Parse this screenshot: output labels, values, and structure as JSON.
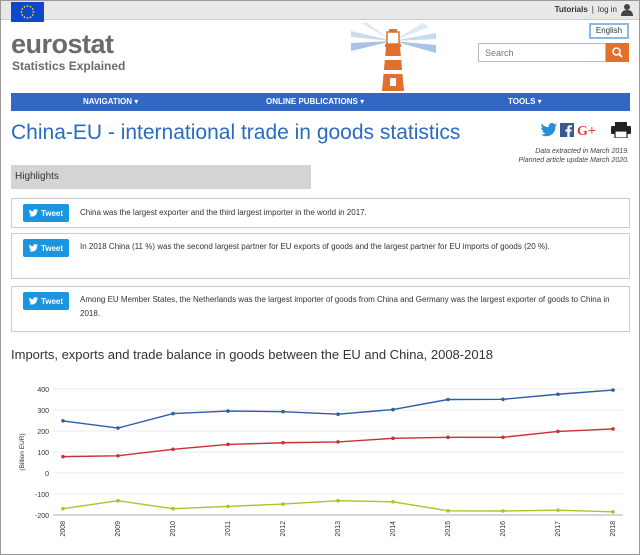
{
  "topbar": {
    "tutorials": "Tutorials",
    "separator": "|",
    "login": "log in"
  },
  "logo": {
    "main": "eurostat",
    "sub": "Statistics Explained"
  },
  "language": "English",
  "search": {
    "placeholder": "Search"
  },
  "nav": {
    "items": [
      "NAVIGATION ▾",
      "ONLINE PUBLICATIONS ▾",
      "TOOLS ▾"
    ]
  },
  "title": "China-EU - international trade in goods statistics",
  "extract": {
    "line1": "Data extracted in March 2019.",
    "line2": "Planned article update March 2020."
  },
  "highlights": {
    "heading": "Highlights",
    "tweet_label": "Tweet",
    "items": [
      "China was the largest exporter and the third largest importer in the world in 2017.",
      "In 2018 China (11 %) was the second largest partner for EU exports of goods and the largest partner for EU imports of goods (20 %).",
      "Among EU Member States, the Netherlands was the largest importer of goods from China and Germany was the largest exporter of goods to China in 2018."
    ]
  },
  "colors": {
    "accent": "#2a6bc2",
    "nav": "#3367c5",
    "search_button": "#e0702a",
    "tweet": "#1b95e0"
  },
  "chart_data": {
    "type": "line",
    "title": "Imports, exports and trade balance in goods between the EU and China, 2008-2018",
    "ylabel": "(Billion EUR)",
    "xlabel": "",
    "ylim": [
      -200,
      400
    ],
    "yticks": [
      400,
      300,
      200,
      100,
      0,
      -100,
      -200
    ],
    "grid": true,
    "categories": [
      "2008",
      "2009",
      "2010",
      "2011",
      "2012",
      "2013",
      "2014",
      "2015",
      "2016",
      "2017",
      "2018"
    ],
    "series": [
      {
        "color": "#2a5fa8",
        "values": [
          248,
          214,
          283,
          295,
          292,
          280,
          302,
          350,
          351,
          375,
          395
        ]
      },
      {
        "color": "#c83232",
        "values": [
          78,
          82,
          113,
          136,
          144,
          148,
          165,
          170,
          170,
          198,
          210
        ]
      },
      {
        "color": "#b5bf2a",
        "values": [
          -170,
          -132,
          -170,
          -159,
          -148,
          -132,
          -137,
          -180,
          -181,
          -177,
          -185
        ]
      }
    ]
  }
}
